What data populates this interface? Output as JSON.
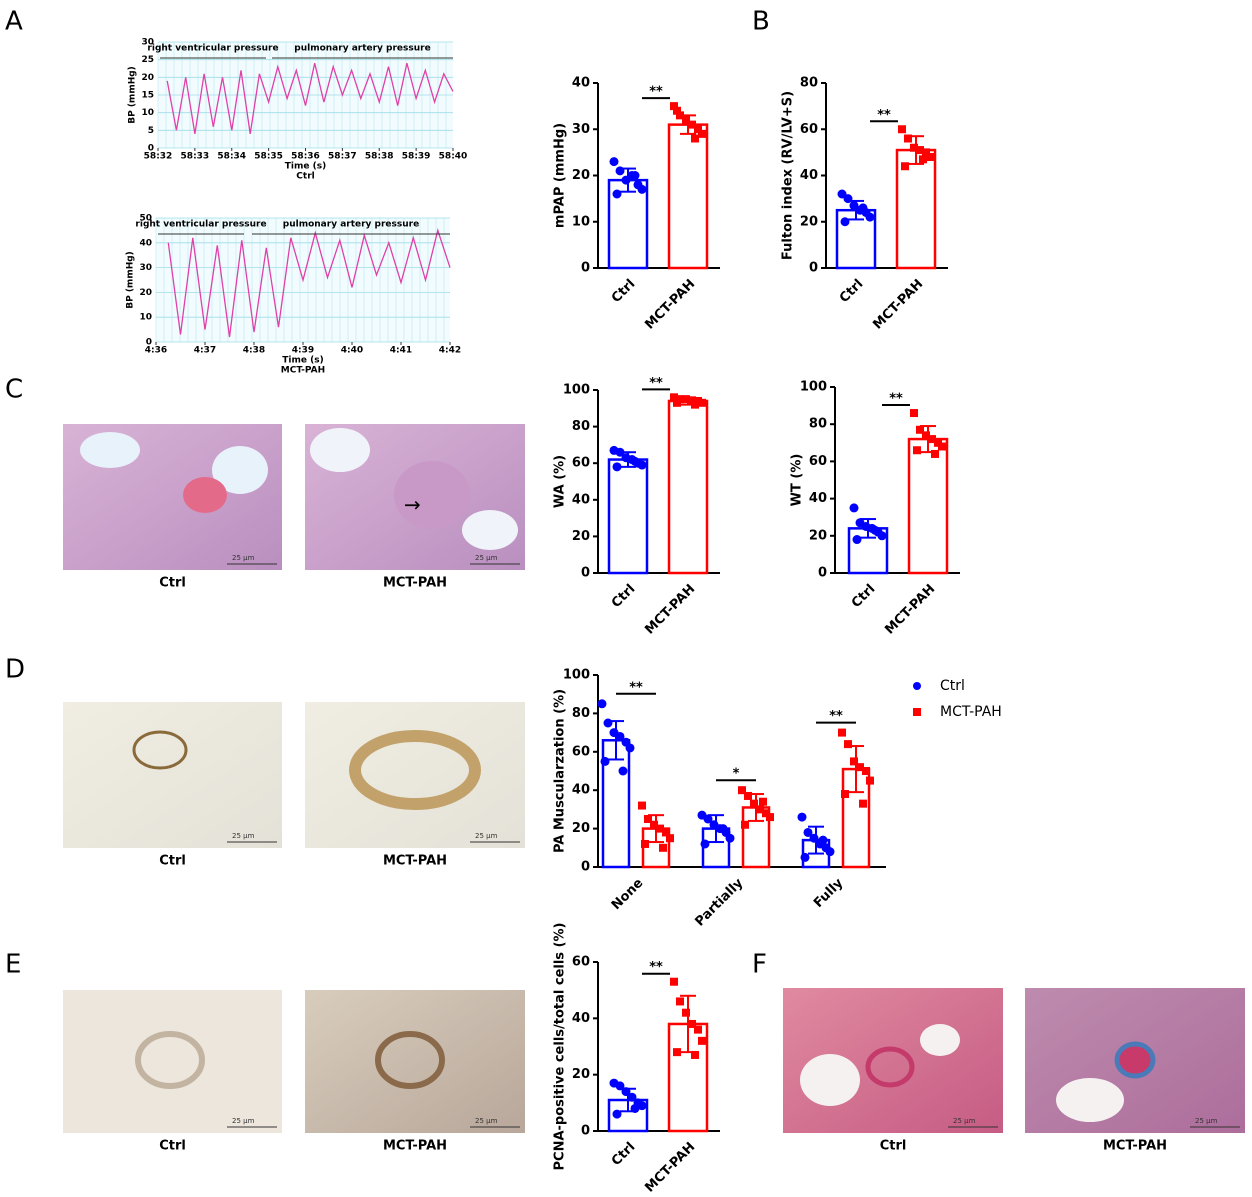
{
  "figure": {
    "panel_letters": [
      "A",
      "B",
      "C",
      "D",
      "E",
      "F"
    ],
    "image_captions": {
      "C": [
        "Ctrl",
        "MCT-PAH"
      ],
      "D": [
        "Ctrl",
        "MCT-PAH"
      ],
      "E": [
        "Ctrl",
        "MCT-PAH"
      ],
      "F": [
        "Ctrl",
        "MCT-PAH"
      ]
    },
    "scale_bar": "25 μm",
    "arrow_note": "→"
  },
  "chart_data": [
    {
      "type": "trace",
      "ylabel": "BP (mmHg)",
      "xlabel": "Time (s)",
      "caption": "Ctrl",
      "segments": [
        "right ventricular pressure",
        "pulmonary artery pressure"
      ],
      "color": "#e040a8",
      "grid": true,
      "xlim": [
        3512,
        3520
      ],
      "xticks": [
        {
          "value": 3512,
          "label": "58:32"
        },
        {
          "value": 3513,
          "label": "58:33"
        },
        {
          "value": 3514,
          "label": "58:34"
        },
        {
          "value": 3515,
          "label": "58:35"
        },
        {
          "value": 3516,
          "label": "58:36"
        },
        {
          "value": 3517,
          "label": "58:37"
        },
        {
          "value": 3518,
          "label": "58:38"
        },
        {
          "value": 3519,
          "label": "58:39"
        },
        {
          "value": 3520,
          "label": "58:40"
        }
      ],
      "ylim": [
        0,
        30
      ],
      "yticks": [
        0,
        5,
        10,
        15,
        20,
        25,
        30
      ],
      "x": [
        3512.25,
        3512.5,
        3512.75,
        3513,
        3513.25,
        3513.5,
        3513.75,
        3514,
        3514.25,
        3514.5,
        3514.75,
        3515,
        3515.25,
        3515.5,
        3515.75,
        3516,
        3516.25,
        3516.5,
        3516.75,
        3517,
        3517.25,
        3517.5,
        3517.75,
        3518,
        3518.25,
        3518.5,
        3518.75,
        3519,
        3519.25,
        3519.5,
        3519.75,
        3520
      ],
      "values": [
        19,
        5,
        20,
        4,
        21,
        6,
        20,
        5,
        22,
        4,
        21,
        13,
        23,
        14,
        22,
        12,
        24,
        13,
        23,
        15,
        22,
        14,
        21,
        13,
        23,
        12,
        24,
        14,
        22,
        13,
        21,
        16
      ]
    },
    {
      "type": "trace",
      "ylabel": "BP (mmHg)",
      "xlabel": "Time (s)",
      "caption": "MCT-PAH",
      "segments": [
        "right ventricular pressure",
        "pulmonary artery pressure"
      ],
      "color": "#e040a8",
      "grid": true,
      "xlim": [
        276,
        282
      ],
      "xticks": [
        {
          "value": 276,
          "label": "4:36"
        },
        {
          "value": 277,
          "label": "4:37"
        },
        {
          "value": 278,
          "label": "4:38"
        },
        {
          "value": 279,
          "label": "4:39"
        },
        {
          "value": 280,
          "label": "4:40"
        },
        {
          "value": 281,
          "label": "4:41"
        },
        {
          "value": 282,
          "label": "4:42"
        }
      ],
      "ylim": [
        0,
        50
      ],
      "yticks": [
        0,
        10,
        20,
        30,
        40,
        50
      ],
      "x": [
        276.25,
        276.5,
        276.75,
        277,
        277.25,
        277.5,
        277.75,
        278,
        278.25,
        278.5,
        278.75,
        279,
        279.25,
        279.5,
        279.75,
        280,
        280.25,
        280.5,
        280.75,
        281,
        281.25,
        281.5,
        281.75,
        282
      ],
      "values": [
        40,
        3,
        42,
        5,
        39,
        2,
        41,
        4,
        38,
        6,
        42,
        25,
        44,
        26,
        41,
        22,
        43,
        27,
        40,
        24,
        42,
        25,
        45,
        30
      ]
    },
    {
      "type": "bar",
      "ylabel": "mPAP (mmHg)",
      "categories": [
        "Ctrl",
        "MCT-PAH"
      ],
      "colors": [
        "#0000ff",
        "#ff0000"
      ],
      "values": [
        19,
        31
      ],
      "errors": [
        2.5,
        2
      ],
      "points": [
        [
          23,
          21,
          19,
          20,
          18,
          17,
          16,
          20
        ],
        [
          35,
          33,
          32,
          31,
          30,
          29,
          34,
          28
        ]
      ],
      "annotations": [
        "**"
      ],
      "ylim": [
        0,
        40
      ],
      "yticks": [
        0,
        10,
        20,
        30,
        40
      ]
    },
    {
      "type": "bar",
      "ylabel": "Fulton index (RV/LV+S)",
      "categories": [
        "Ctrl",
        "MCT-PAH"
      ],
      "colors": [
        "#0000ff",
        "#ff0000"
      ],
      "values": [
        25,
        51
      ],
      "errors": [
        4,
        6
      ],
      "points": [
        [
          32,
          30,
          27,
          25,
          24,
          22,
          20,
          26
        ],
        [
          60,
          56,
          52,
          51,
          50,
          48,
          44,
          47
        ]
      ],
      "annotations": [
        "**"
      ],
      "ylim": [
        0,
        80
      ],
      "yticks": [
        0,
        20,
        40,
        60,
        80
      ]
    },
    {
      "type": "bar",
      "ylabel": "WA (%)",
      "categories": [
        "Ctrl",
        "MCT-PAH"
      ],
      "colors": [
        "#0000ff",
        "#ff0000"
      ],
      "values": [
        62,
        94
      ],
      "errors": [
        4,
        2
      ],
      "points": [
        [
          67,
          66,
          63,
          62,
          60,
          59,
          58,
          61
        ],
        [
          96,
          95,
          95,
          94,
          94,
          93,
          93,
          92
        ]
      ],
      "annotations": [
        "**"
      ],
      "ylim": [
        0,
        100
      ],
      "yticks": [
        0,
        20,
        40,
        60,
        80,
        100
      ]
    },
    {
      "type": "bar",
      "ylabel": "WT (%)",
      "categories": [
        "Ctrl",
        "MCT-PAH"
      ],
      "colors": [
        "#0000ff",
        "#ff0000"
      ],
      "values": [
        24,
        72
      ],
      "errors": [
        5,
        7
      ],
      "points": [
        [
          35,
          27,
          25,
          24,
          22,
          20,
          18,
          23
        ],
        [
          86,
          77,
          74,
          72,
          70,
          68,
          66,
          64
        ]
      ],
      "annotations": [
        "**"
      ],
      "ylim": [
        0,
        100
      ],
      "yticks": [
        0,
        20,
        40,
        60,
        80,
        100
      ]
    },
    {
      "type": "grouped",
      "ylabel": "PA Muscularzation (%)",
      "categories": [
        "None",
        "Partially",
        "Fully"
      ],
      "legend": "right",
      "series": [
        {
          "name": "Ctrl",
          "color": "#0000ff",
          "values": [
            66,
            20,
            14
          ],
          "errors": [
            10,
            7,
            7
          ],
          "points": [
            [
              85,
              75,
              70,
              68,
              65,
              62,
              55,
              50
            ],
            [
              27,
              25,
              22,
              20,
              18,
              15,
              12,
              20
            ],
            [
              26,
              18,
              15,
              12,
              10,
              8,
              5,
              14
            ]
          ]
        },
        {
          "name": "MCT-PAH",
          "color": "#ff0000",
          "values": [
            20,
            31,
            51
          ],
          "errors": [
            7,
            7,
            12
          ],
          "points": [
            [
              32,
              25,
              22,
              20,
              18,
              15,
              12,
              10
            ],
            [
              40,
              37,
              33,
              30,
              28,
              26,
              22,
              34
            ],
            [
              70,
              64,
              55,
              52,
              50,
              45,
              38,
              33
            ]
          ]
        }
      ],
      "annotations": [
        "**",
        "*",
        "**"
      ],
      "ylim": [
        0,
        100
      ],
      "yticks": [
        0,
        20,
        40,
        60,
        80,
        100
      ]
    },
    {
      "type": "bar",
      "ylabel": "PCNA-positive cells/total cells (%)",
      "categories": [
        "Ctrl",
        "MCT-PAH"
      ],
      "colors": [
        "#0000ff",
        "#ff0000"
      ],
      "values": [
        11,
        38
      ],
      "errors": [
        4,
        10
      ],
      "points": [
        [
          17,
          16,
          14,
          12,
          10,
          9,
          6,
          8
        ],
        [
          53,
          46,
          42,
          38,
          36,
          32,
          28,
          27
        ]
      ],
      "annotations": [
        "**"
      ],
      "ylim": [
        0,
        60
      ],
      "yticks": [
        0,
        20,
        40,
        60
      ]
    }
  ]
}
